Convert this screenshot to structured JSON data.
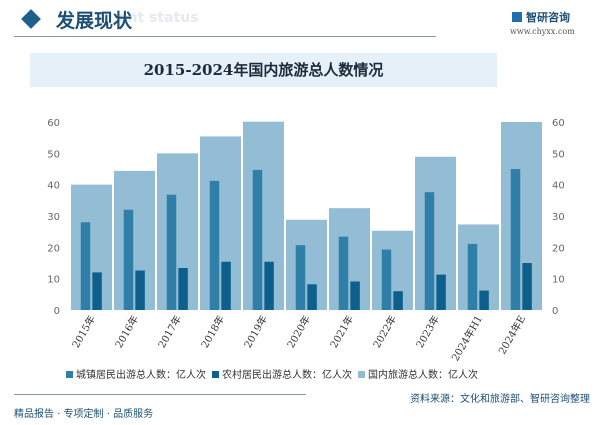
{
  "header": {
    "title": "发展现状",
    "subtitle": "ent status",
    "logo_text": "智研咨询",
    "url": "www.chyxx.com"
  },
  "chart_data": {
    "type": "bar",
    "title": "2015-2024年国内旅游总人数情况",
    "categories": [
      "2015年",
      "2016年",
      "2017年",
      "2018年",
      "2019年",
      "2020年",
      "2021年",
      "2022年",
      "2023年",
      "2024年H1",
      "2024年E"
    ],
    "series": [
      {
        "name": "城镇居民出游总人数：亿人次",
        "color": "#2f7fa8",
        "values": [
          28,
          32,
          36.8,
          41.2,
          44.7,
          20.7,
          23.4,
          19.3,
          37.6,
          21.1,
          45
        ]
      },
      {
        "name": "农村居民出游总人数：亿人次",
        "color": "#0d5f8c",
        "values": [
          12,
          12.6,
          13.4,
          15.4,
          15.4,
          8.2,
          9.1,
          6,
          11.3,
          6.2,
          15
        ]
      },
      {
        "name": "国内旅游总人数：亿人次",
        "color": "#93bdd4",
        "values": [
          40,
          44.4,
          50,
          55.4,
          60.1,
          28.8,
          32.5,
          25.3,
          48.9,
          27.3,
          60
        ]
      }
    ],
    "ylim": [
      0,
      60
    ],
    "yticks": [
      0,
      10,
      20,
      30,
      40,
      50,
      60
    ],
    "grid": false,
    "legend": "bottom"
  },
  "source": "资料来源：文化和旅游部、智研咨询整理",
  "footer": "精品报告 · 专项定制 · 品质服务"
}
